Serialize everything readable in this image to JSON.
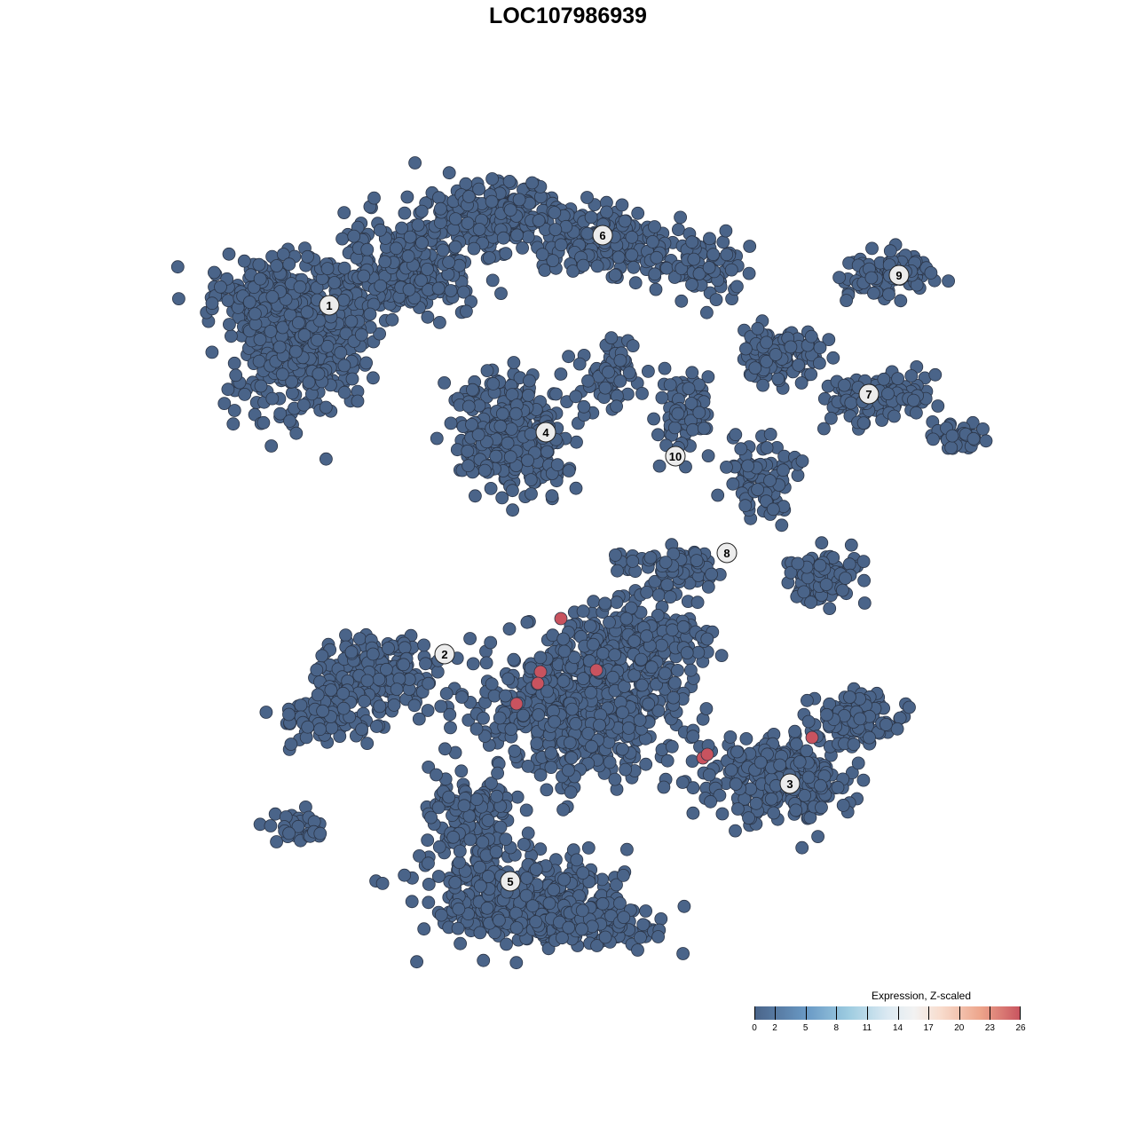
{
  "chart_data": {
    "type": "scatter",
    "title": "LOC107986939",
    "xlabel": "",
    "ylabel": "",
    "grid": false,
    "cluster_labels": [
      "1",
      "2",
      "3",
      "4",
      "5",
      "6",
      "7",
      "8",
      "9",
      "10"
    ],
    "point_color_low": "#4a6489",
    "point_color_high": "#c8535f",
    "point_stroke": "#2b3547",
    "highlighted_points_visible": 8,
    "legend": {
      "title": "Expression, Z-scaled",
      "placement": "bottom-right",
      "range": [
        0,
        26
      ],
      "ticks": [
        "0",
        "2",
        "5",
        "8",
        "11",
        "14",
        "17",
        "20",
        "23",
        "26"
      ],
      "colors": [
        "#4a6489",
        "#6a9ac6",
        "#9ccbe0",
        "#f2f2f2",
        "#eda58b",
        "#c8535f"
      ]
    }
  }
}
